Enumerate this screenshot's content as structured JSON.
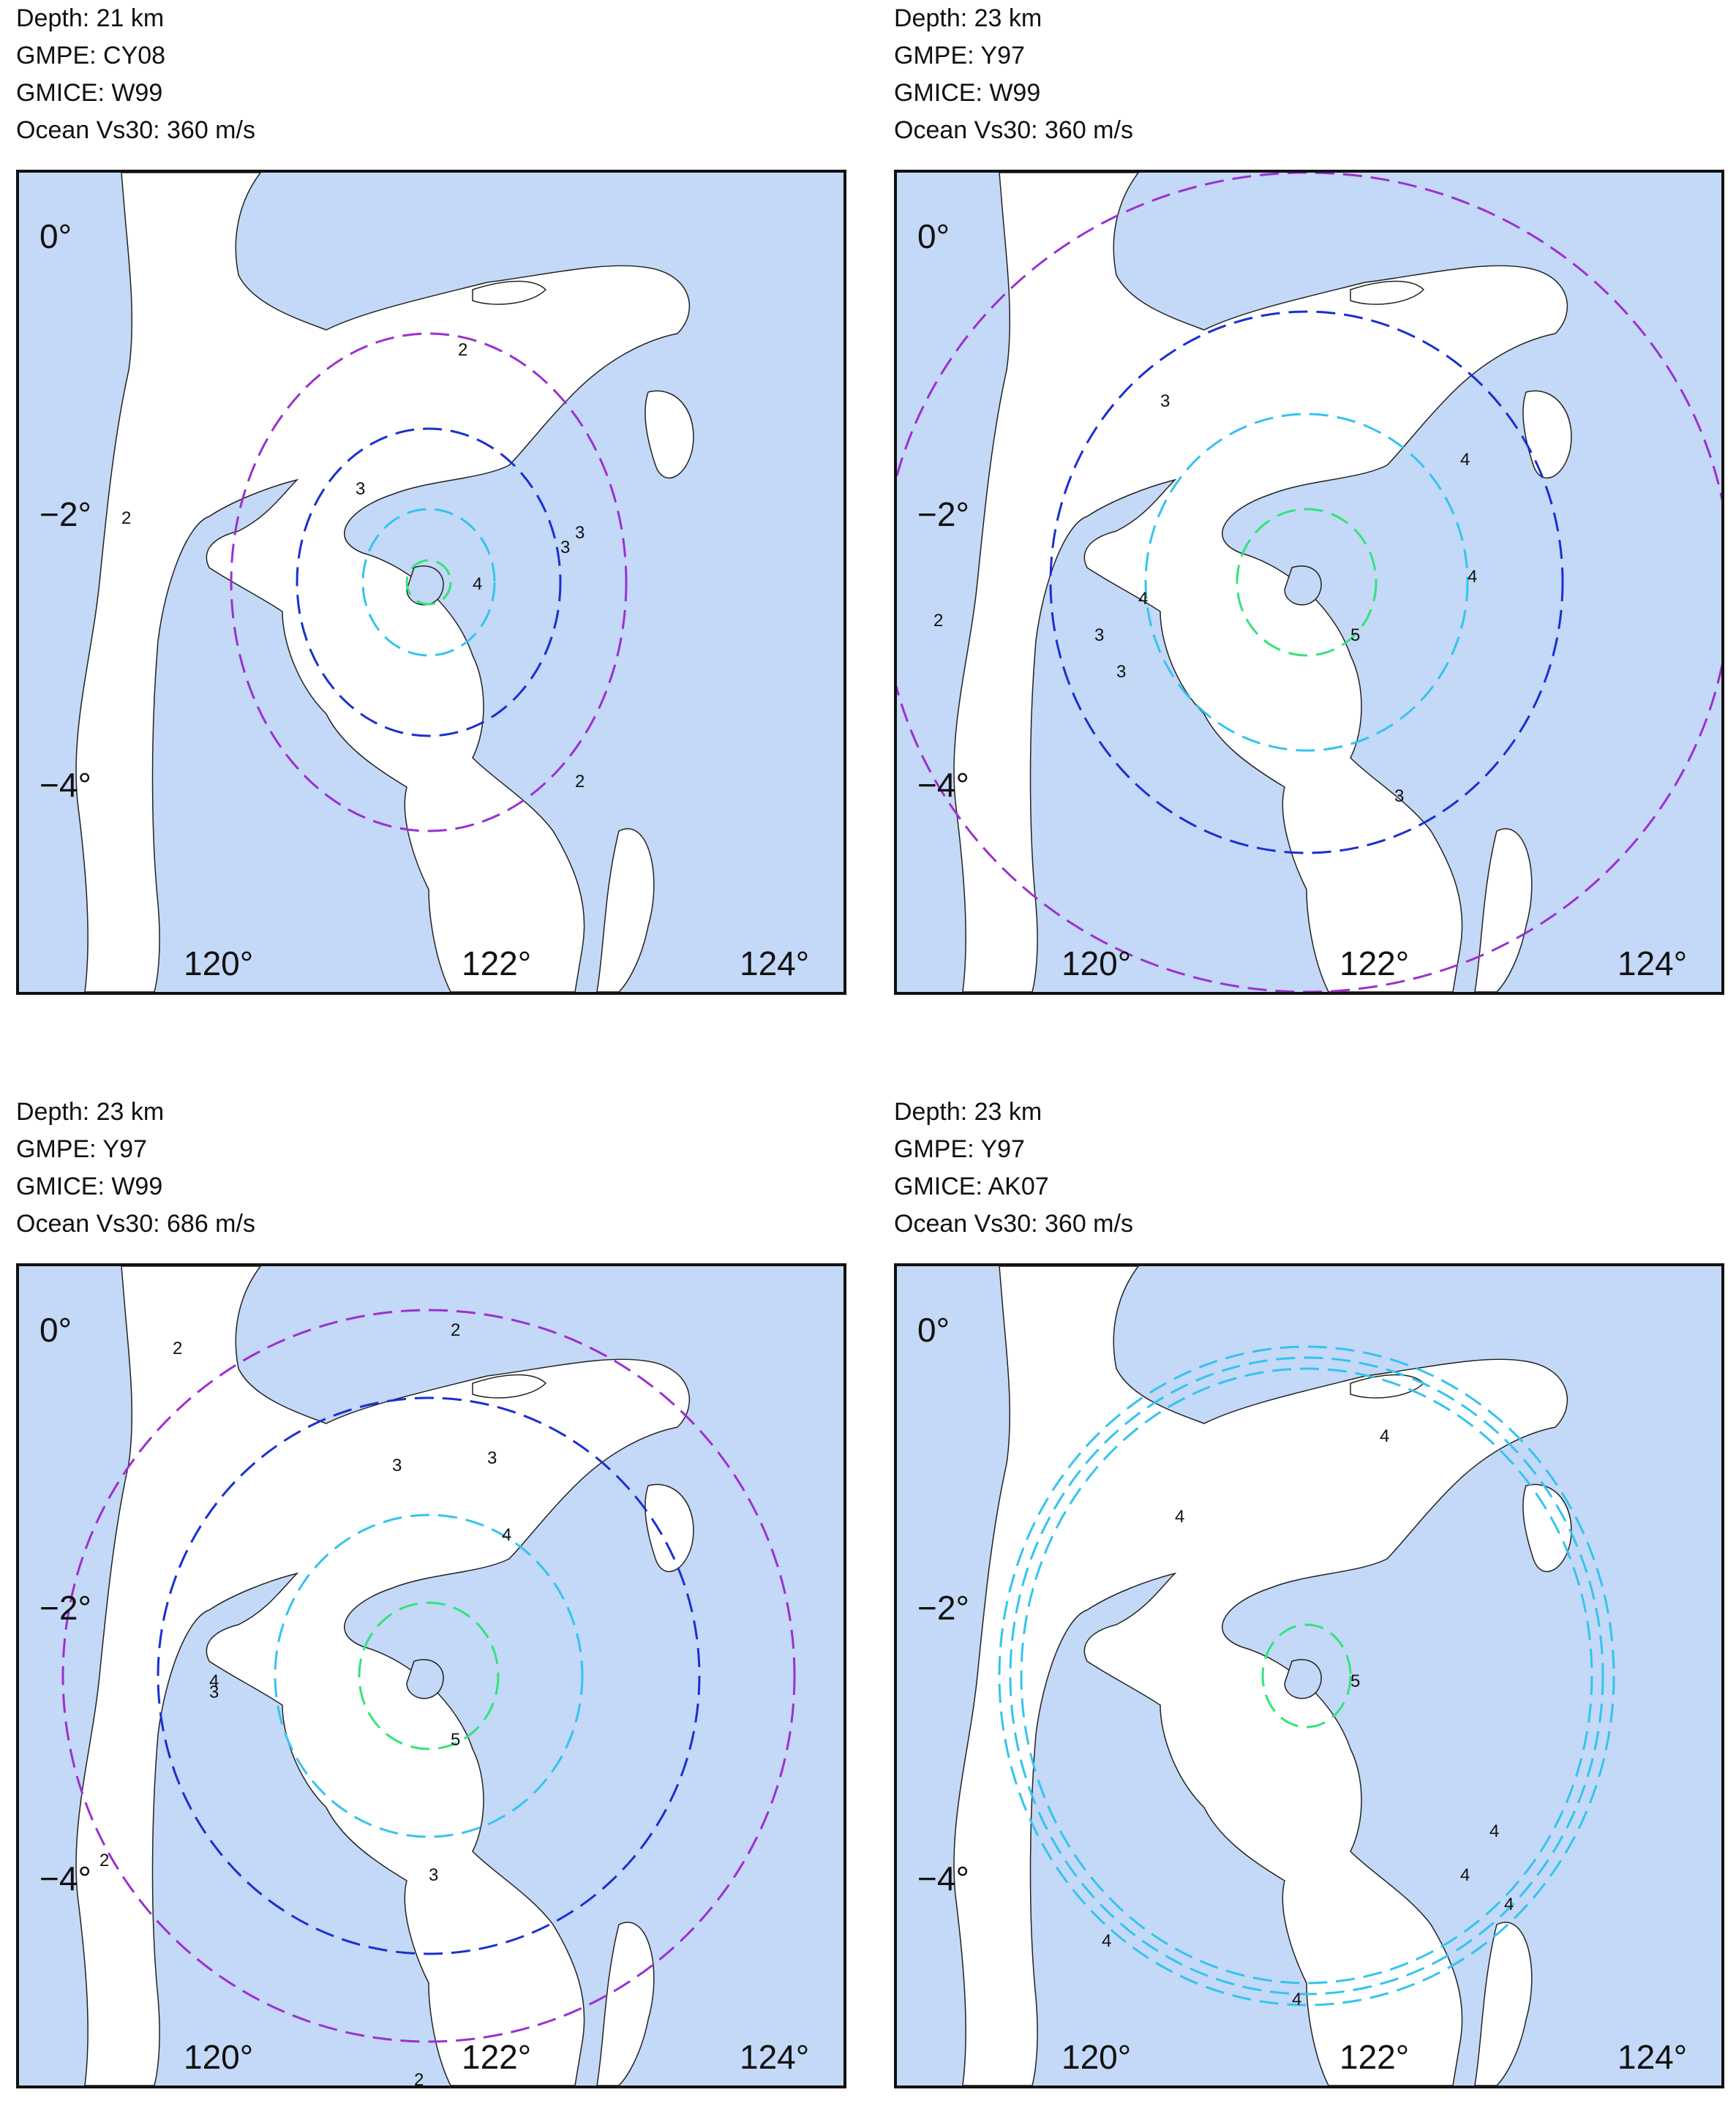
{
  "panels": [
    {
      "depth": "Depth: 21 km",
      "gmpe": "GMPE: CY08",
      "gmice": "GMICE: W99",
      "ocean": "Ocean Vs30: 360 m/s",
      "lat_labels": [
        "0°",
        "−2°",
        "−4°"
      ],
      "lon_labels": [
        "120°",
        "122°",
        "124°"
      ],
      "contour_labels": [
        "2",
        "2",
        "2",
        "3",
        "3",
        "3",
        "4"
      ]
    },
    {
      "depth": "Depth: 23 km",
      "gmpe": "GMPE: Y97",
      "gmice": "GMICE: W99",
      "ocean": "Ocean Vs30: 360 m/s",
      "lat_labels": [
        "0°",
        "−2°",
        "−4°"
      ],
      "lon_labels": [
        "120°",
        "122°",
        "124°"
      ],
      "contour_labels": [
        "2",
        "3",
        "3",
        "3",
        "3",
        "4",
        "4",
        "4",
        "5"
      ]
    },
    {
      "depth": "Depth: 23 km",
      "gmpe": "GMPE: Y97",
      "gmice": "GMICE: W99",
      "ocean": "Ocean Vs30: 686 m/s",
      "lat_labels": [
        "0°",
        "−2°",
        "−4°"
      ],
      "lon_labels": [
        "120°",
        "122°",
        "124°"
      ],
      "contour_labels": [
        "2",
        "2",
        "2",
        "2",
        "3",
        "3",
        "3",
        "3",
        "4",
        "4",
        "5"
      ]
    },
    {
      "depth": "Depth: 23 km",
      "gmpe": "GMPE: Y97",
      "gmice": "GMICE: AK07",
      "ocean": "Ocean Vs30: 360 m/s",
      "lat_labels": [
        "0°",
        "−2°",
        "−4°"
      ],
      "lon_labels": [
        "120°",
        "122°",
        "124°"
      ],
      "contour_labels": [
        "4",
        "4",
        "4",
        "4",
        "4",
        "4",
        "4",
        "5"
      ]
    }
  ],
  "colors": {
    "ocean": "#c4d8f7",
    "land": "#ffffff",
    "mmi2": "#9b30d0",
    "mmi3": "#1a2fd0",
    "mmi4": "#33c4ee",
    "mmi5": "#33e37a"
  }
}
